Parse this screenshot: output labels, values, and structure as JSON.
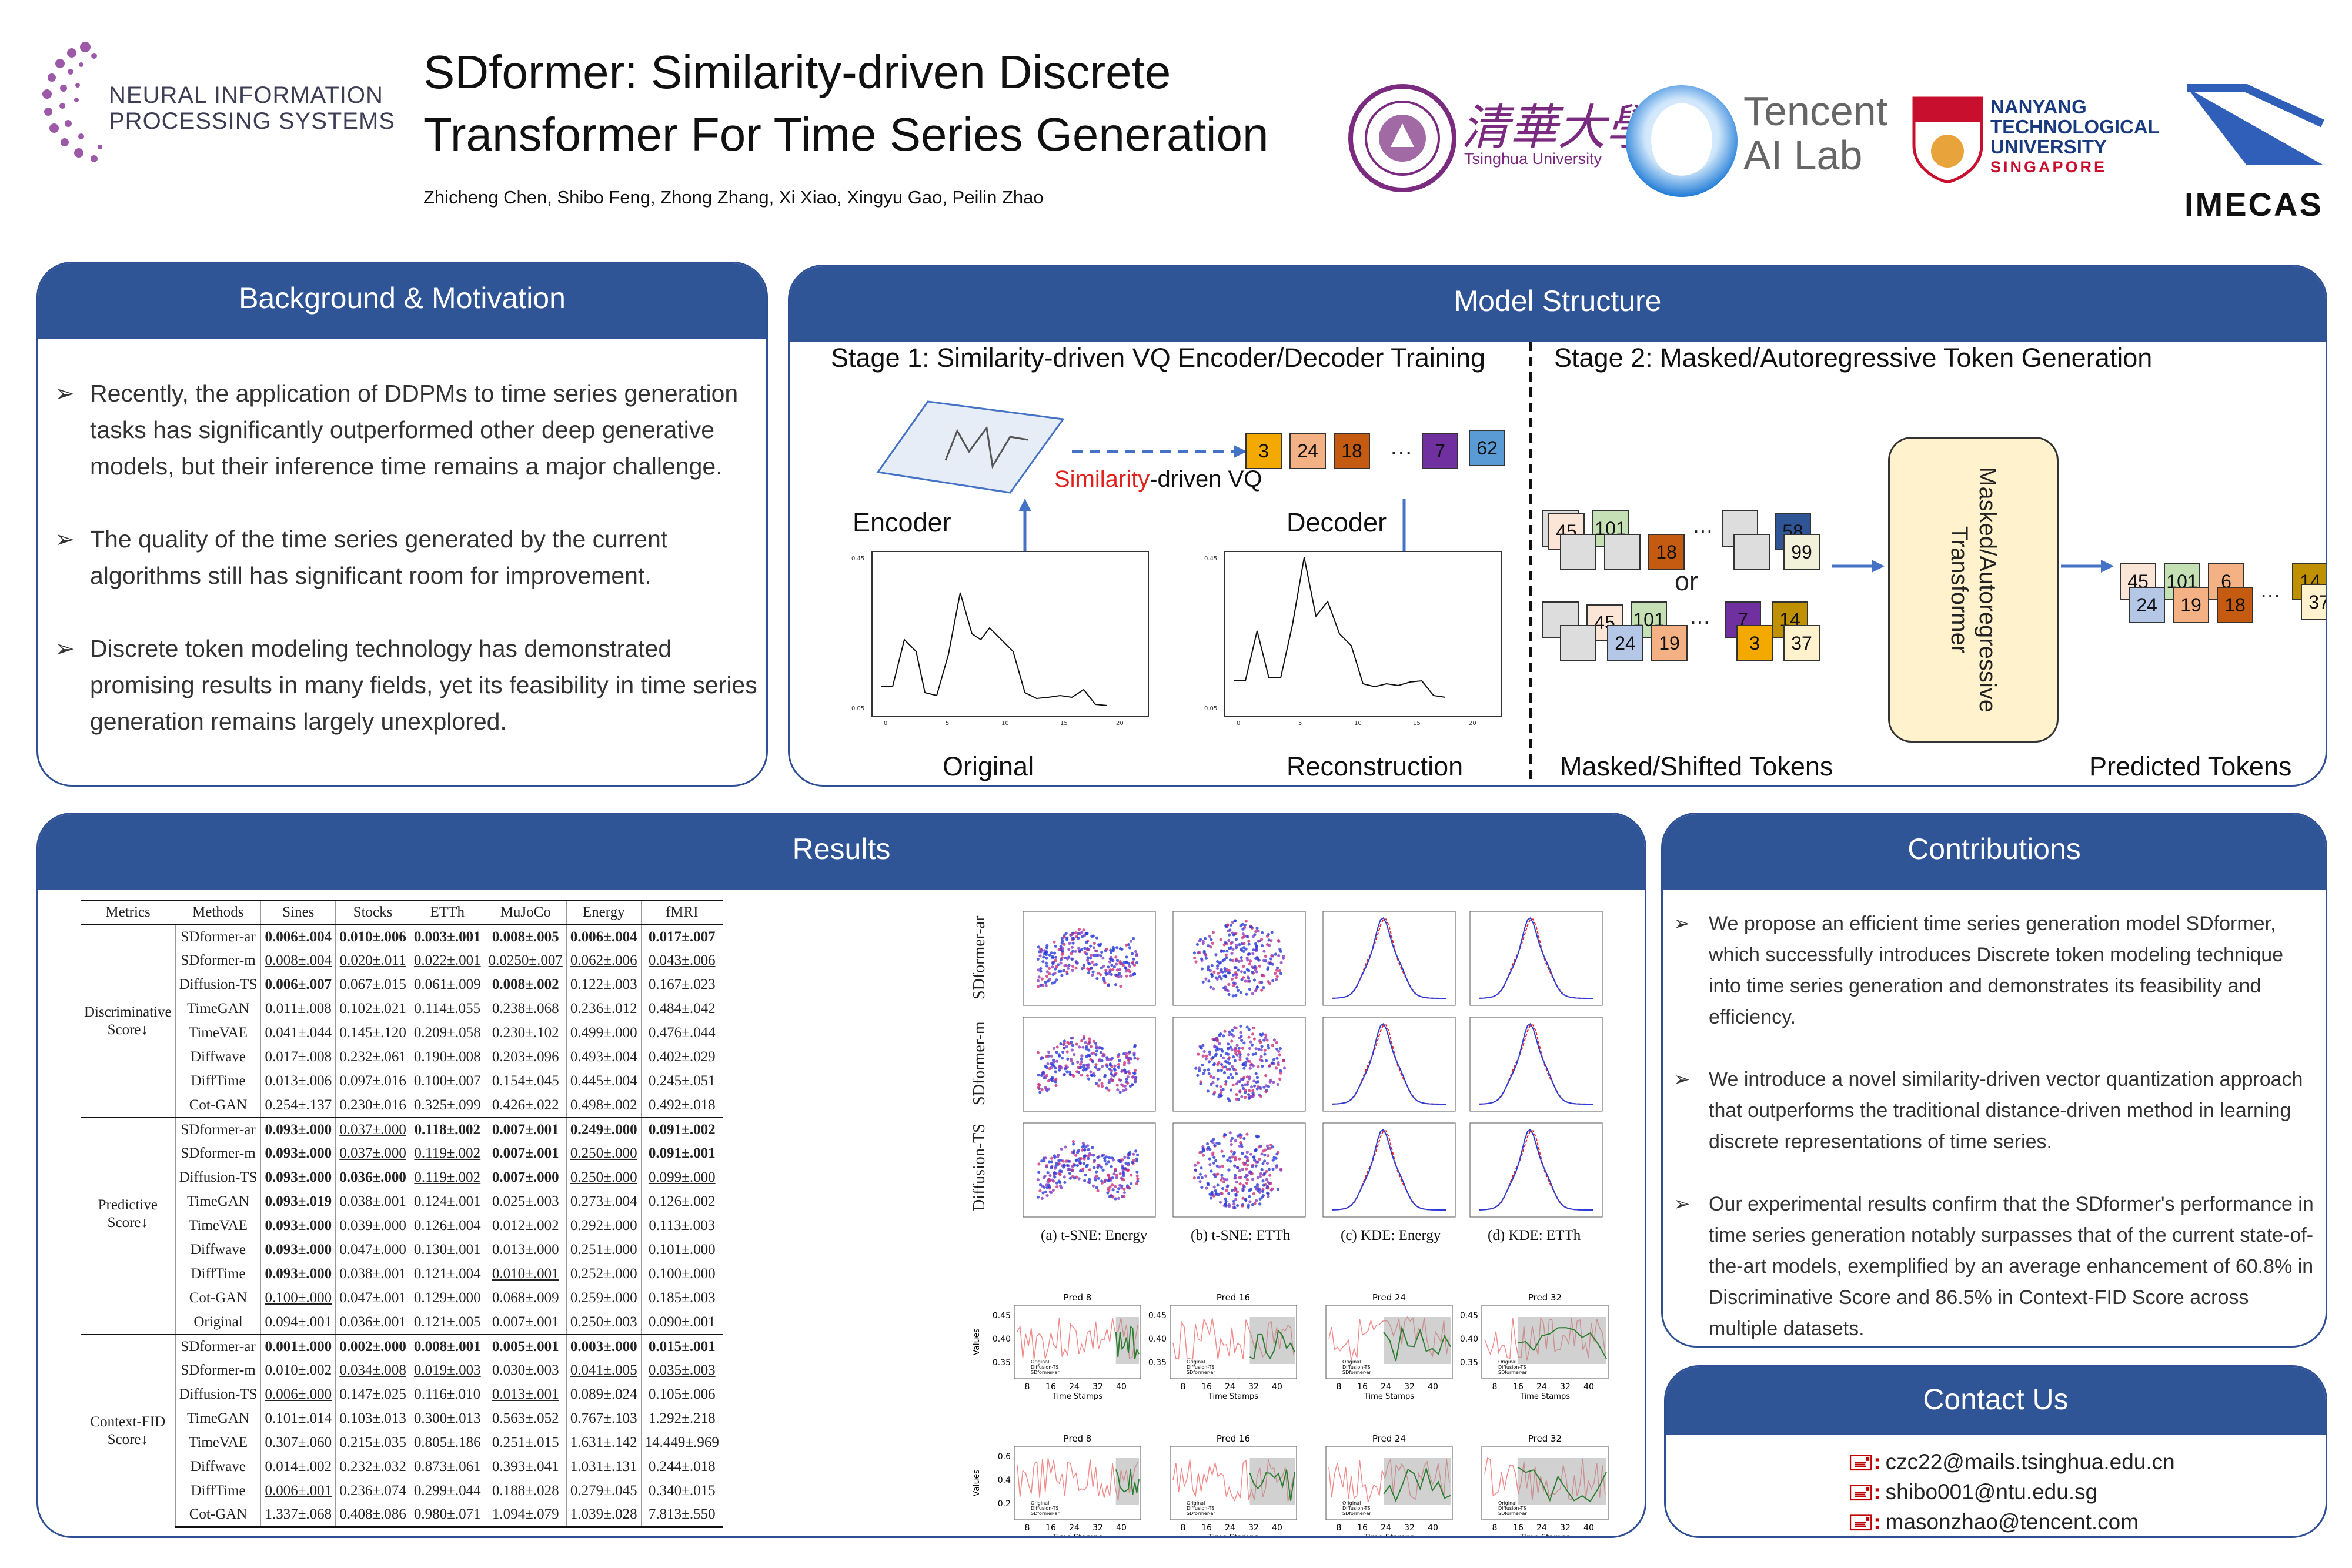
{
  "header": {
    "title_line1": "SDformer: Similarity-driven Discrete",
    "title_line2": "Transformer For Time Series Generation",
    "authors": "Zhicheng Chen, Shibo Feng, Zhong Zhang, Xi Xiao, Xingyu Gao, Peilin Zhao",
    "neurips_line1": "NEURAL INFORMATION",
    "neurips_line2": "PROCESSING SYSTEMS",
    "tsinghua_cn": "清華大學",
    "tsinghua_en": "Tsinghua University",
    "tencent_line1": "Tencent",
    "tencent_line2": "AI Lab",
    "ntu_line1": "NANYANG",
    "ntu_line2": "TECHNOLOGICAL",
    "ntu_line3": "UNIVERSITY",
    "ntu_line4": "SINGAPORE",
    "imecas": "IMECAS"
  },
  "background": {
    "title": "Background & Motivation",
    "bullets": [
      "Recently, the application of DDPMs to time series generation tasks has significantly outperformed other deep generative models, but their inference time remains a major challenge.",
      "The quality of the time series generated by the current algorithms still has significant room for improvement.",
      "Discrete token modeling technology has demonstrated promising results in many fields, yet its feasibility in time series generation remains largely unexplored."
    ]
  },
  "model": {
    "title": "Model Structure",
    "stage1": "Stage 1: Similarity-driven VQ Encoder/Decoder Training",
    "stage2": "Stage 2: Masked/Autoregressive Token Generation",
    "vq_red": "Similarity",
    "vq_rest": "-driven VQ",
    "encoder": "Encoder",
    "decoder": "Decoder",
    "original": "Original",
    "reconstruction": "Reconstruction",
    "tokens": [
      "3",
      "24",
      "18",
      "…",
      "7",
      "62"
    ],
    "or": "or",
    "transformer_line1": "Masked/Autoregressive",
    "transformer_line2": "Transformer",
    "masked_tokens": "Masked/Shifted Tokens",
    "predicted_tokens": "Predicted Tokens",
    "t_45": "45",
    "t_101": "101",
    "t_18": "18",
    "t_58": "58",
    "t_99": "99",
    "t_24": "24",
    "t_19": "19",
    "t_7": "7",
    "t_14": "14",
    "t_3": "3",
    "t_37": "37",
    "t_6": "6",
    "dots": "…"
  },
  "results": {
    "title": "Results",
    "columns": [
      "Metrics",
      "Methods",
      "Sines",
      "Stocks",
      "ETTh",
      "MuJoCo",
      "Energy",
      "fMRI"
    ],
    "groups": [
      "Discriminative Score↓",
      "Predictive Score↓",
      "Context-FID Score↓"
    ],
    "discriminative": [
      [
        "SDformer-ar",
        "0.006±.004",
        "0.010±.006",
        "0.003±.001",
        "0.008±.005",
        "0.006±.004",
        "0.017±.007"
      ],
      [
        "SDformer-m",
        "0.008±.004",
        "0.020±.011",
        "0.022±.001",
        "0.0250±.007",
        "0.062±.006",
        "0.043±.006"
      ],
      [
        "Diffusion-TS",
        "0.006±.007",
        "0.067±.015",
        "0.061±.009",
        "0.008±.002",
        "0.122±.003",
        "0.167±.023"
      ],
      [
        "TimeGAN",
        "0.011±.008",
        "0.102±.021",
        "0.114±.055",
        "0.238±.068",
        "0.236±.012",
        "0.484±.042"
      ],
      [
        "TimeVAE",
        "0.041±.044",
        "0.145±.120",
        "0.209±.058",
        "0.230±.102",
        "0.499±.000",
        "0.476±.044"
      ],
      [
        "Diffwave",
        "0.017±.008",
        "0.232±.061",
        "0.190±.008",
        "0.203±.096",
        "0.493±.004",
        "0.402±.029"
      ],
      [
        "DiffTime",
        "0.013±.006",
        "0.097±.016",
        "0.100±.007",
        "0.154±.045",
        "0.445±.004",
        "0.245±.051"
      ],
      [
        "Cot-GAN",
        "0.254±.137",
        "0.230±.016",
        "0.325±.099",
        "0.426±.022",
        "0.498±.002",
        "0.492±.018"
      ]
    ],
    "predictive": [
      [
        "SDformer-ar",
        "0.093±.000",
        "0.037±.000",
        "0.118±.002",
        "0.007±.001",
        "0.249±.000",
        "0.091±.002"
      ],
      [
        "SDformer-m",
        "0.093±.000",
        "0.037±.000",
        "0.119±.002",
        "0.007±.001",
        "0.250±.000",
        "0.091±.001"
      ],
      [
        "Diffusion-TS",
        "0.093±.000",
        "0.036±.000",
        "0.119±.002",
        "0.007±.000",
        "0.250±.000",
        "0.099±.000"
      ],
      [
        "TimeGAN",
        "0.093±.019",
        "0.038±.001",
        "0.124±.001",
        "0.025±.003",
        "0.273±.004",
        "0.126±.002"
      ],
      [
        "TimeVAE",
        "0.093±.000",
        "0.039±.000",
        "0.126±.004",
        "0.012±.002",
        "0.292±.000",
        "0.113±.003"
      ],
      [
        "Diffwave",
        "0.093±.000",
        "0.047±.000",
        "0.130±.001",
        "0.013±.000",
        "0.251±.000",
        "0.101±.000"
      ],
      [
        "DiffTime",
        "0.093±.000",
        "0.038±.001",
        "0.121±.004",
        "0.010±.001",
        "0.252±.000",
        "0.100±.000"
      ],
      [
        "Cot-GAN",
        "0.100±.000",
        "0.047±.001",
        "0.129±.000",
        "0.068±.009",
        "0.259±.000",
        "0.185±.003"
      ],
      [
        "Original",
        "0.094±.001",
        "0.036±.001",
        "0.121±.005",
        "0.007±.001",
        "0.250±.003",
        "0.090±.001"
      ]
    ],
    "contextfid": [
      [
        "SDformer-ar",
        "0.001±.000",
        "0.002±.000",
        "0.008±.001",
        "0.005±.001",
        "0.003±.000",
        "0.015±.001"
      ],
      [
        "SDformer-m",
        "0.010±.002",
        "0.034±.008",
        "0.019±.003",
        "0.030±.003",
        "0.041±.005",
        "0.035±.003"
      ],
      [
        "Diffusion-TS",
        "0.006±.000",
        "0.147±.025",
        "0.116±.010",
        "0.013±.001",
        "0.089±.024",
        "0.105±.006"
      ],
      [
        "TimeGAN",
        "0.101±.014",
        "0.103±.013",
        "0.300±.013",
        "0.563±.052",
        "0.767±.103",
        "1.292±.218"
      ],
      [
        "TimeVAE",
        "0.307±.060",
        "0.215±.035",
        "0.805±.186",
        "0.251±.015",
        "1.631±.142",
        "14.449±.969"
      ],
      [
        "Diffwave",
        "0.014±.002",
        "0.232±.032",
        "0.873±.061",
        "0.393±.041",
        "1.031±.131",
        "0.244±.018"
      ],
      [
        "DiffTime",
        "0.006±.001",
        "0.236±.074",
        "0.299±.044",
        "0.188±.028",
        "0.279±.045",
        "0.340±.015"
      ],
      [
        "Cot-GAN",
        "1.337±.068",
        "0.408±.086",
        "0.980±.071",
        "1.094±.079",
        "1.039±.028",
        "7.813±.550"
      ]
    ],
    "figure_rows": [
      "SDformer-ar",
      "SDformer-m",
      "Diffusion-TS"
    ],
    "figure_captions": [
      "(a) t-SNE: Energy",
      "(b) t-SNE: ETTh",
      "(c) KDE: Energy",
      "(d) KDE: ETTh"
    ],
    "pred_titles": [
      "Pred 8",
      "Pred 16",
      "Pred 24",
      "Pred 32"
    ],
    "pred_xlabel": "Time Stamps",
    "pred_ylabel": "Values",
    "pred_xticks": [
      "8",
      "16",
      "24",
      "32",
      "40"
    ],
    "pred_yticks_top": [
      "0.45",
      "0.40",
      "0.35"
    ],
    "pred_yticks_bottom": [
      "0.6",
      "0.4",
      "0.2"
    ],
    "pred_legend": [
      "Original",
      "Diffusion-TS",
      "SDformer-ar"
    ]
  },
  "contributions": {
    "title": "Contributions",
    "bullets": [
      "We propose an efficient time series generation model SDformer, which successfully introduces Discrete token modeling technique into time series generation and demonstrates its feasibility and efficiency.",
      "We introduce a novel similarity-driven vector quantization approach that outperforms the traditional distance-driven method in learning discrete representations of time series.",
      "Our experimental results confirm that the SDformer's performance in time series generation notably surpasses that of the current state-of-the-art models, exemplified by an average enhancement of 60.8% in Discriminative Score and 86.5% in Context-FID Score across multiple datasets."
    ]
  },
  "contact": {
    "title": "Contact Us",
    "emails": [
      "czc22@mails.tsinghua.edu.cn",
      "shibo001@ntu.edu.sg",
      "masonzhao@tencent.com"
    ]
  },
  "colors": {
    "accent": "#2f5597",
    "highlight_red": "#e0201b",
    "token_orange": "#f4a900"
  }
}
